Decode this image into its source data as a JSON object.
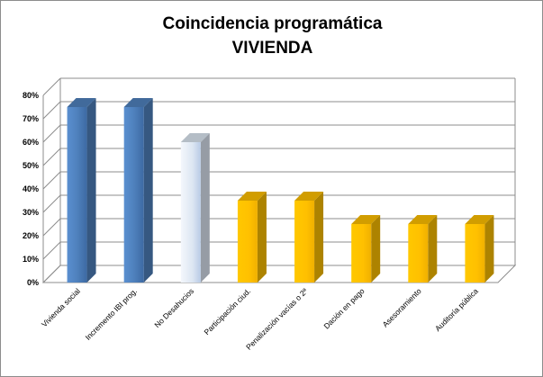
{
  "chart_data": {
    "type": "bar",
    "title_line1": "Coincidencia programática",
    "title_line2": "VIVIENDA",
    "categories": [
      "Vivienda social",
      "Incremento IBI prog.",
      "No Desahucios",
      "Participación ciud.",
      "Penalización vacías o 2ª",
      "Dación en pago",
      "Asesoramiento",
      "Auditoría pública"
    ],
    "values": [
      75,
      75,
      60,
      35,
      35,
      25,
      25,
      25
    ],
    "y_tick_labels": [
      "0%",
      "10%",
      "20%",
      "30%",
      "40%",
      "50%",
      "60%",
      "70%",
      "80%"
    ],
    "ylim": [
      0,
      80
    ],
    "grid": true,
    "legend": "none",
    "colors": [
      "#4f81bd",
      "#4f81bd",
      "#dce6f2",
      "#ffc000",
      "#ffc000",
      "#ffc000",
      "#ffc000",
      "#ffc000"
    ]
  }
}
